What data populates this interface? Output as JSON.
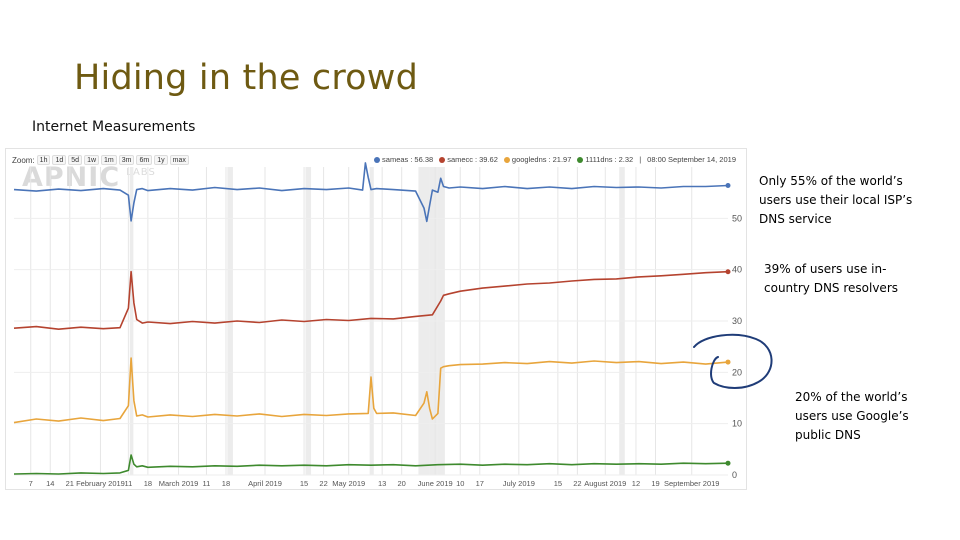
{
  "slide": {
    "title": "Hiding in the crowd",
    "subtitle": "Internet Measurements"
  },
  "chart_header": {
    "zoom_label": "Zoom:",
    "zoom_options": [
      "1h",
      "1d",
      "5d",
      "1w",
      "1m",
      "3m",
      "6m",
      "1y",
      "max"
    ],
    "timestamp": "08:00 September 14, 2019"
  },
  "watermark": {
    "main": "APNIC",
    "sub": "LABS"
  },
  "annotations": [
    "Only 55% of the world’s users use their local ISP’s DNS service",
    "39% of users use in-country DNS resolvers",
    "20% of the world’s users use Google’s public DNS"
  ],
  "colors": {
    "title": "#6e5a12",
    "sameas": "#4a74b8",
    "samecc": "#b5432f",
    "googledns": "#e8a53c",
    "1111dns": "#3e8a2e",
    "annotation_circle": "#1f3c78"
  },
  "chart_data": {
    "type": "line",
    "title": "",
    "xlabel": "",
    "ylabel": "",
    "ylim": [
      0,
      60
    ],
    "y_ticks": [
      0,
      10,
      20,
      30,
      40,
      50
    ],
    "x_ticks": [
      "7",
      "14",
      "21",
      "February 2019",
      "11",
      "18",
      "March 2019",
      "11",
      "18",
      "April 2019",
      "15",
      "22",
      "May 2019",
      "13",
      "20",
      "June 2019",
      "10",
      "17",
      "July 2019",
      "15",
      "22",
      "August 2019",
      "12",
      "19",
      "September 2019"
    ],
    "x_tick_days": [
      6,
      13,
      20,
      31,
      41,
      48,
      59,
      69,
      76,
      90,
      104,
      111,
      120,
      132,
      139,
      151,
      160,
      167,
      181,
      195,
      202,
      212,
      223,
      230,
      243
    ],
    "x_range_days": [
      0,
      256
    ],
    "grid": true,
    "legend_position": "top-right",
    "events": [
      {
        "start": 41.5,
        "end": 42.8
      },
      {
        "start": 76.5,
        "end": 78.5
      },
      {
        "start": 104.5,
        "end": 106.5
      },
      {
        "start": 127.5,
        "end": 129
      },
      {
        "start": 145,
        "end": 149
      },
      {
        "start": 149,
        "end": 152
      },
      {
        "start": 152,
        "end": 154.5
      },
      {
        "start": 217,
        "end": 219
      }
    ],
    "series": [
      {
        "name": "sameas",
        "legend_value": "56.38",
        "x": [
          0,
          8,
          16,
          24,
          32,
          38,
          41,
          42,
          43,
          44,
          46,
          48,
          56,
          64,
          72,
          80,
          88,
          96,
          104,
          112,
          120,
          125,
          126,
          127,
          128,
          130,
          136,
          144,
          147,
          148,
          149,
          150,
          152,
          153,
          154,
          156,
          160,
          168,
          176,
          184,
          192,
          200,
          208,
          216,
          224,
          232,
          240,
          248,
          256
        ],
        "y": [
          55.6,
          55.3,
          55.7,
          55.4,
          55.8,
          55.5,
          54.5,
          49.5,
          53,
          55.6,
          55.8,
          55.4,
          55.8,
          55.5,
          56,
          55.6,
          55.9,
          55.4,
          55.8,
          55.6,
          55.9,
          55.5,
          60.8,
          58,
          55.6,
          55.8,
          55.6,
          55.3,
          52,
          49.4,
          52.5,
          55.5,
          55.1,
          57.8,
          56.2,
          55.9,
          56.1,
          55.8,
          56.2,
          55.8,
          56.1,
          55.8,
          56.2,
          56,
          56.1,
          55.9,
          56.2,
          56.2,
          56.4
        ]
      },
      {
        "name": "samecc",
        "legend_value": "39.62",
        "x": [
          0,
          8,
          16,
          24,
          32,
          38,
          41,
          42,
          43,
          44,
          46,
          48,
          56,
          64,
          72,
          80,
          88,
          96,
          104,
          112,
          120,
          128,
          136,
          144,
          150,
          153,
          154,
          156,
          160,
          168,
          176,
          184,
          192,
          200,
          208,
          216,
          224,
          232,
          240,
          248,
          256
        ],
        "y": [
          28.6,
          28.9,
          28.4,
          28.8,
          28.5,
          28.7,
          32.5,
          39.6,
          33.5,
          30.3,
          29.6,
          29.8,
          29.5,
          29.9,
          29.6,
          30,
          29.7,
          30.2,
          29.9,
          30.3,
          30.1,
          30.5,
          30.4,
          30.9,
          31.2,
          33.9,
          35,
          35.3,
          35.8,
          36.4,
          36.8,
          37.2,
          37.4,
          37.8,
          38.1,
          38.2,
          38.6,
          38.8,
          39.1,
          39.4,
          39.6
        ]
      },
      {
        "name": "googledns",
        "legend_value": "21.97",
        "x": [
          0,
          8,
          16,
          24,
          32,
          38,
          41,
          42,
          43,
          44,
          46,
          48,
          56,
          64,
          72,
          80,
          88,
          96,
          104,
          112,
          120,
          127,
          128,
          129,
          130,
          136,
          144,
          147,
          148,
          149,
          150,
          152,
          153,
          154,
          156,
          160,
          168,
          176,
          184,
          192,
          200,
          208,
          216,
          224,
          232,
          240,
          248,
          256
        ],
        "y": [
          10.2,
          10.9,
          10.5,
          11.1,
          10.6,
          11,
          13.5,
          22.8,
          14.5,
          11.5,
          11.7,
          11.3,
          11.7,
          11.4,
          11.8,
          11.5,
          11.9,
          11.4,
          11.8,
          11.6,
          11.9,
          12,
          19.1,
          13,
          12,
          12.1,
          11.6,
          14,
          16.2,
          13,
          10.9,
          12,
          20.8,
          21.1,
          21.3,
          21.5,
          21.6,
          21.9,
          21.7,
          22.1,
          21.8,
          22.2,
          21.9,
          22.1,
          21.7,
          22,
          21.6,
          22
        ]
      },
      {
        "name": "1111dns",
        "legend_value": "2.32",
        "x": [
          0,
          8,
          16,
          24,
          32,
          38,
          41,
          42,
          43,
          44,
          46,
          48,
          56,
          64,
          72,
          80,
          88,
          96,
          104,
          112,
          120,
          128,
          136,
          144,
          152,
          160,
          168,
          176,
          184,
          192,
          200,
          208,
          216,
          224,
          232,
          240,
          248,
          256
        ],
        "y": [
          0.2,
          0.3,
          0.2,
          0.4,
          0.3,
          0.4,
          0.9,
          3.9,
          2.1,
          1.6,
          1.8,
          1.5,
          1.7,
          1.6,
          1.8,
          1.7,
          1.9,
          1.8,
          1.9,
          1.8,
          2,
          1.9,
          2,
          1.8,
          2,
          2.1,
          1.9,
          2.1,
          2,
          2.2,
          2,
          2.2,
          2.1,
          2.2,
          2.1,
          2.3,
          2.2,
          2.3
        ]
      }
    ]
  }
}
